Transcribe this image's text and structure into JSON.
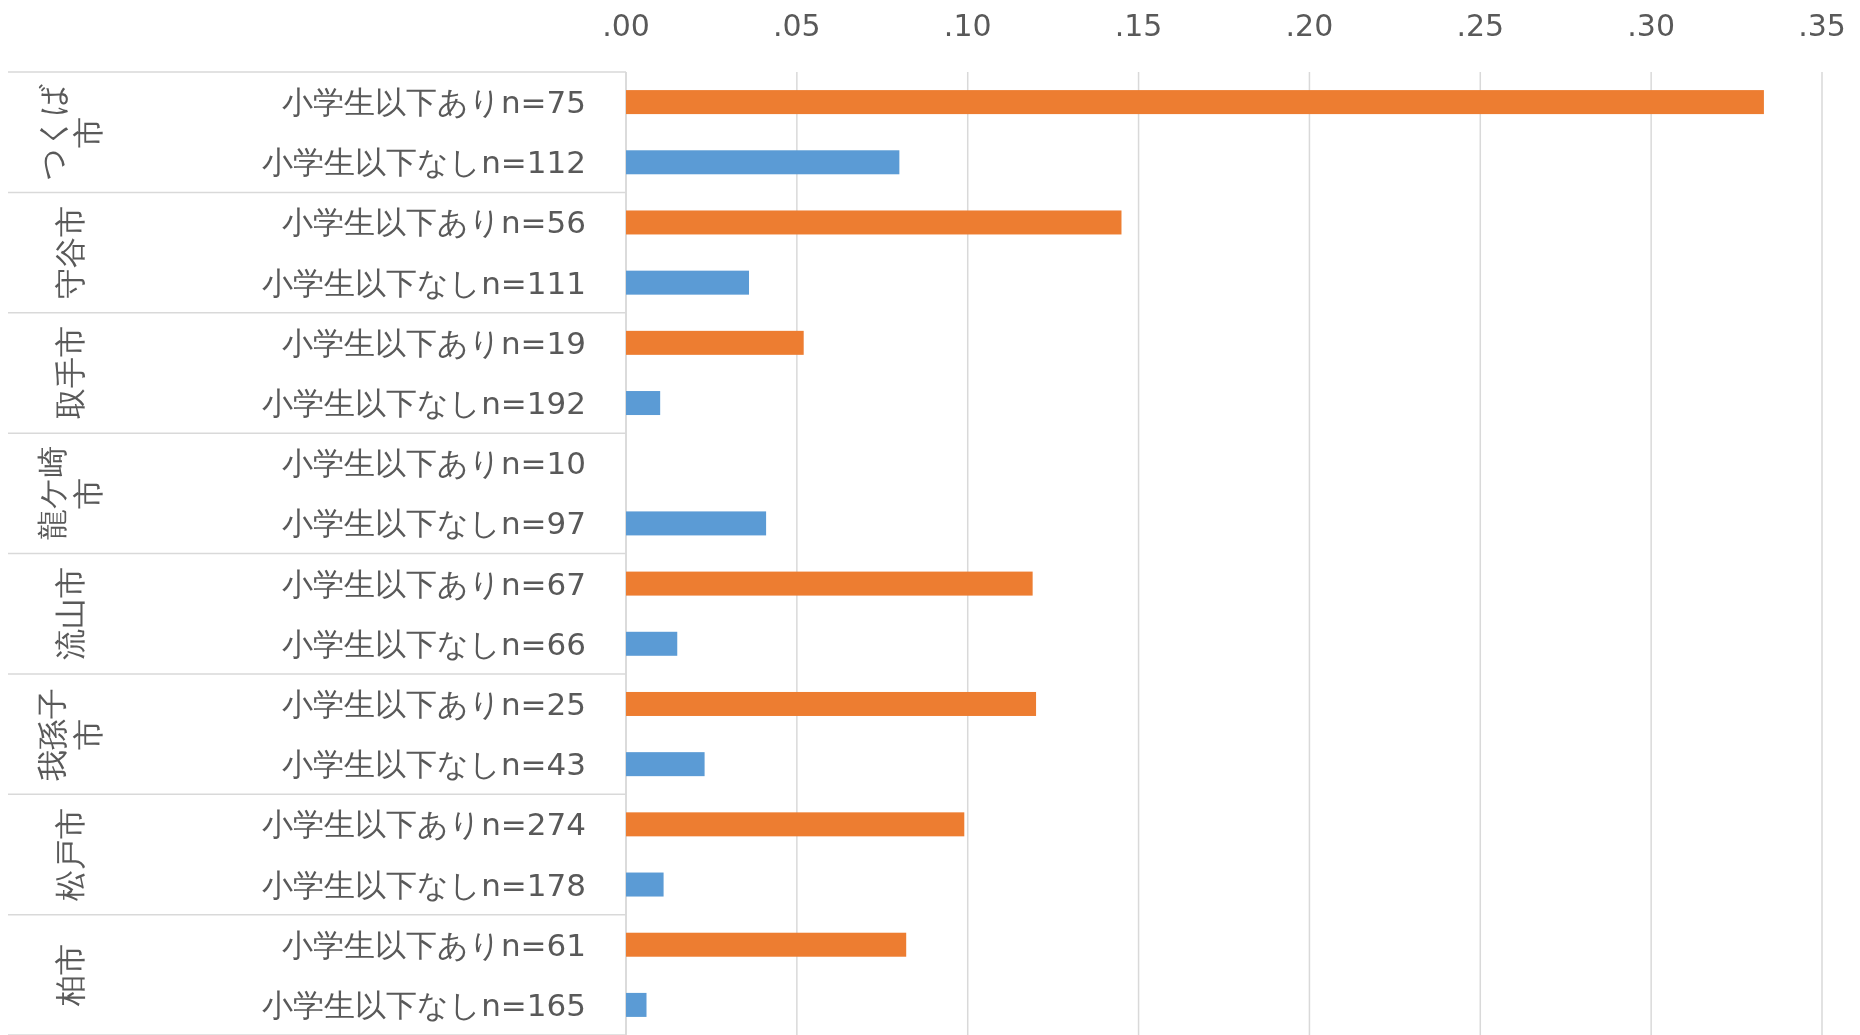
{
  "chart_data": {
    "type": "bar",
    "orientation": "horizontal",
    "categories": [
      "小学生以下ありn=75",
      "小学生以下なしn=112",
      "小学生以下ありn=56",
      "小学生以下なしn=111",
      "小学生以下ありn=19",
      "小学生以下なしn=192",
      "小学生以下ありn=10",
      "小学生以下なしn=97",
      "小学生以下ありn=67",
      "小学生以下なしn=66",
      "小学生以下ありn=25",
      "小学生以下なしn=43",
      "小学生以下ありn=274",
      "小学生以下なしn=178",
      "小学生以下ありn=61",
      "小学生以下なしn=165"
    ],
    "values": [
      0.333,
      0.08,
      0.145,
      0.036,
      0.052,
      0.01,
      0,
      0.041,
      0.119,
      0.015,
      0.12,
      0.023,
      0.099,
      0.011,
      0.082,
      0.006
    ],
    "colors": [
      "#ed7d31",
      "#5b9bd5",
      "#ed7d31",
      "#5b9bd5",
      "#ed7d31",
      "#5b9bd5",
      "#ed7d31",
      "#5b9bd5",
      "#ed7d31",
      "#5b9bd5",
      "#ed7d31",
      "#5b9bd5",
      "#ed7d31",
      "#5b9bd5",
      "#ed7d31",
      "#5b9bd5"
    ],
    "xlim": [
      0,
      0.35
    ],
    "xticks": [
      {
        "value": 0,
        "label": ".00"
      },
      {
        "value": 0.05,
        "label": ".05"
      },
      {
        "value": 0.1,
        "label": ".10"
      },
      {
        "value": 0.15,
        "label": ".15"
      },
      {
        "value": 0.2,
        "label": ".20"
      },
      {
        "value": 0.25,
        "label": ".25"
      },
      {
        "value": 0.3,
        "label": ".30"
      },
      {
        "value": 0.35,
        "label": ".35"
      }
    ],
    "grid": "x",
    "annotations": [
      "つくば市",
      "守谷市",
      "取手市",
      "龍ケ崎市",
      "流山市",
      "我孫子市",
      "松戸市",
      "柏市"
    ]
  }
}
